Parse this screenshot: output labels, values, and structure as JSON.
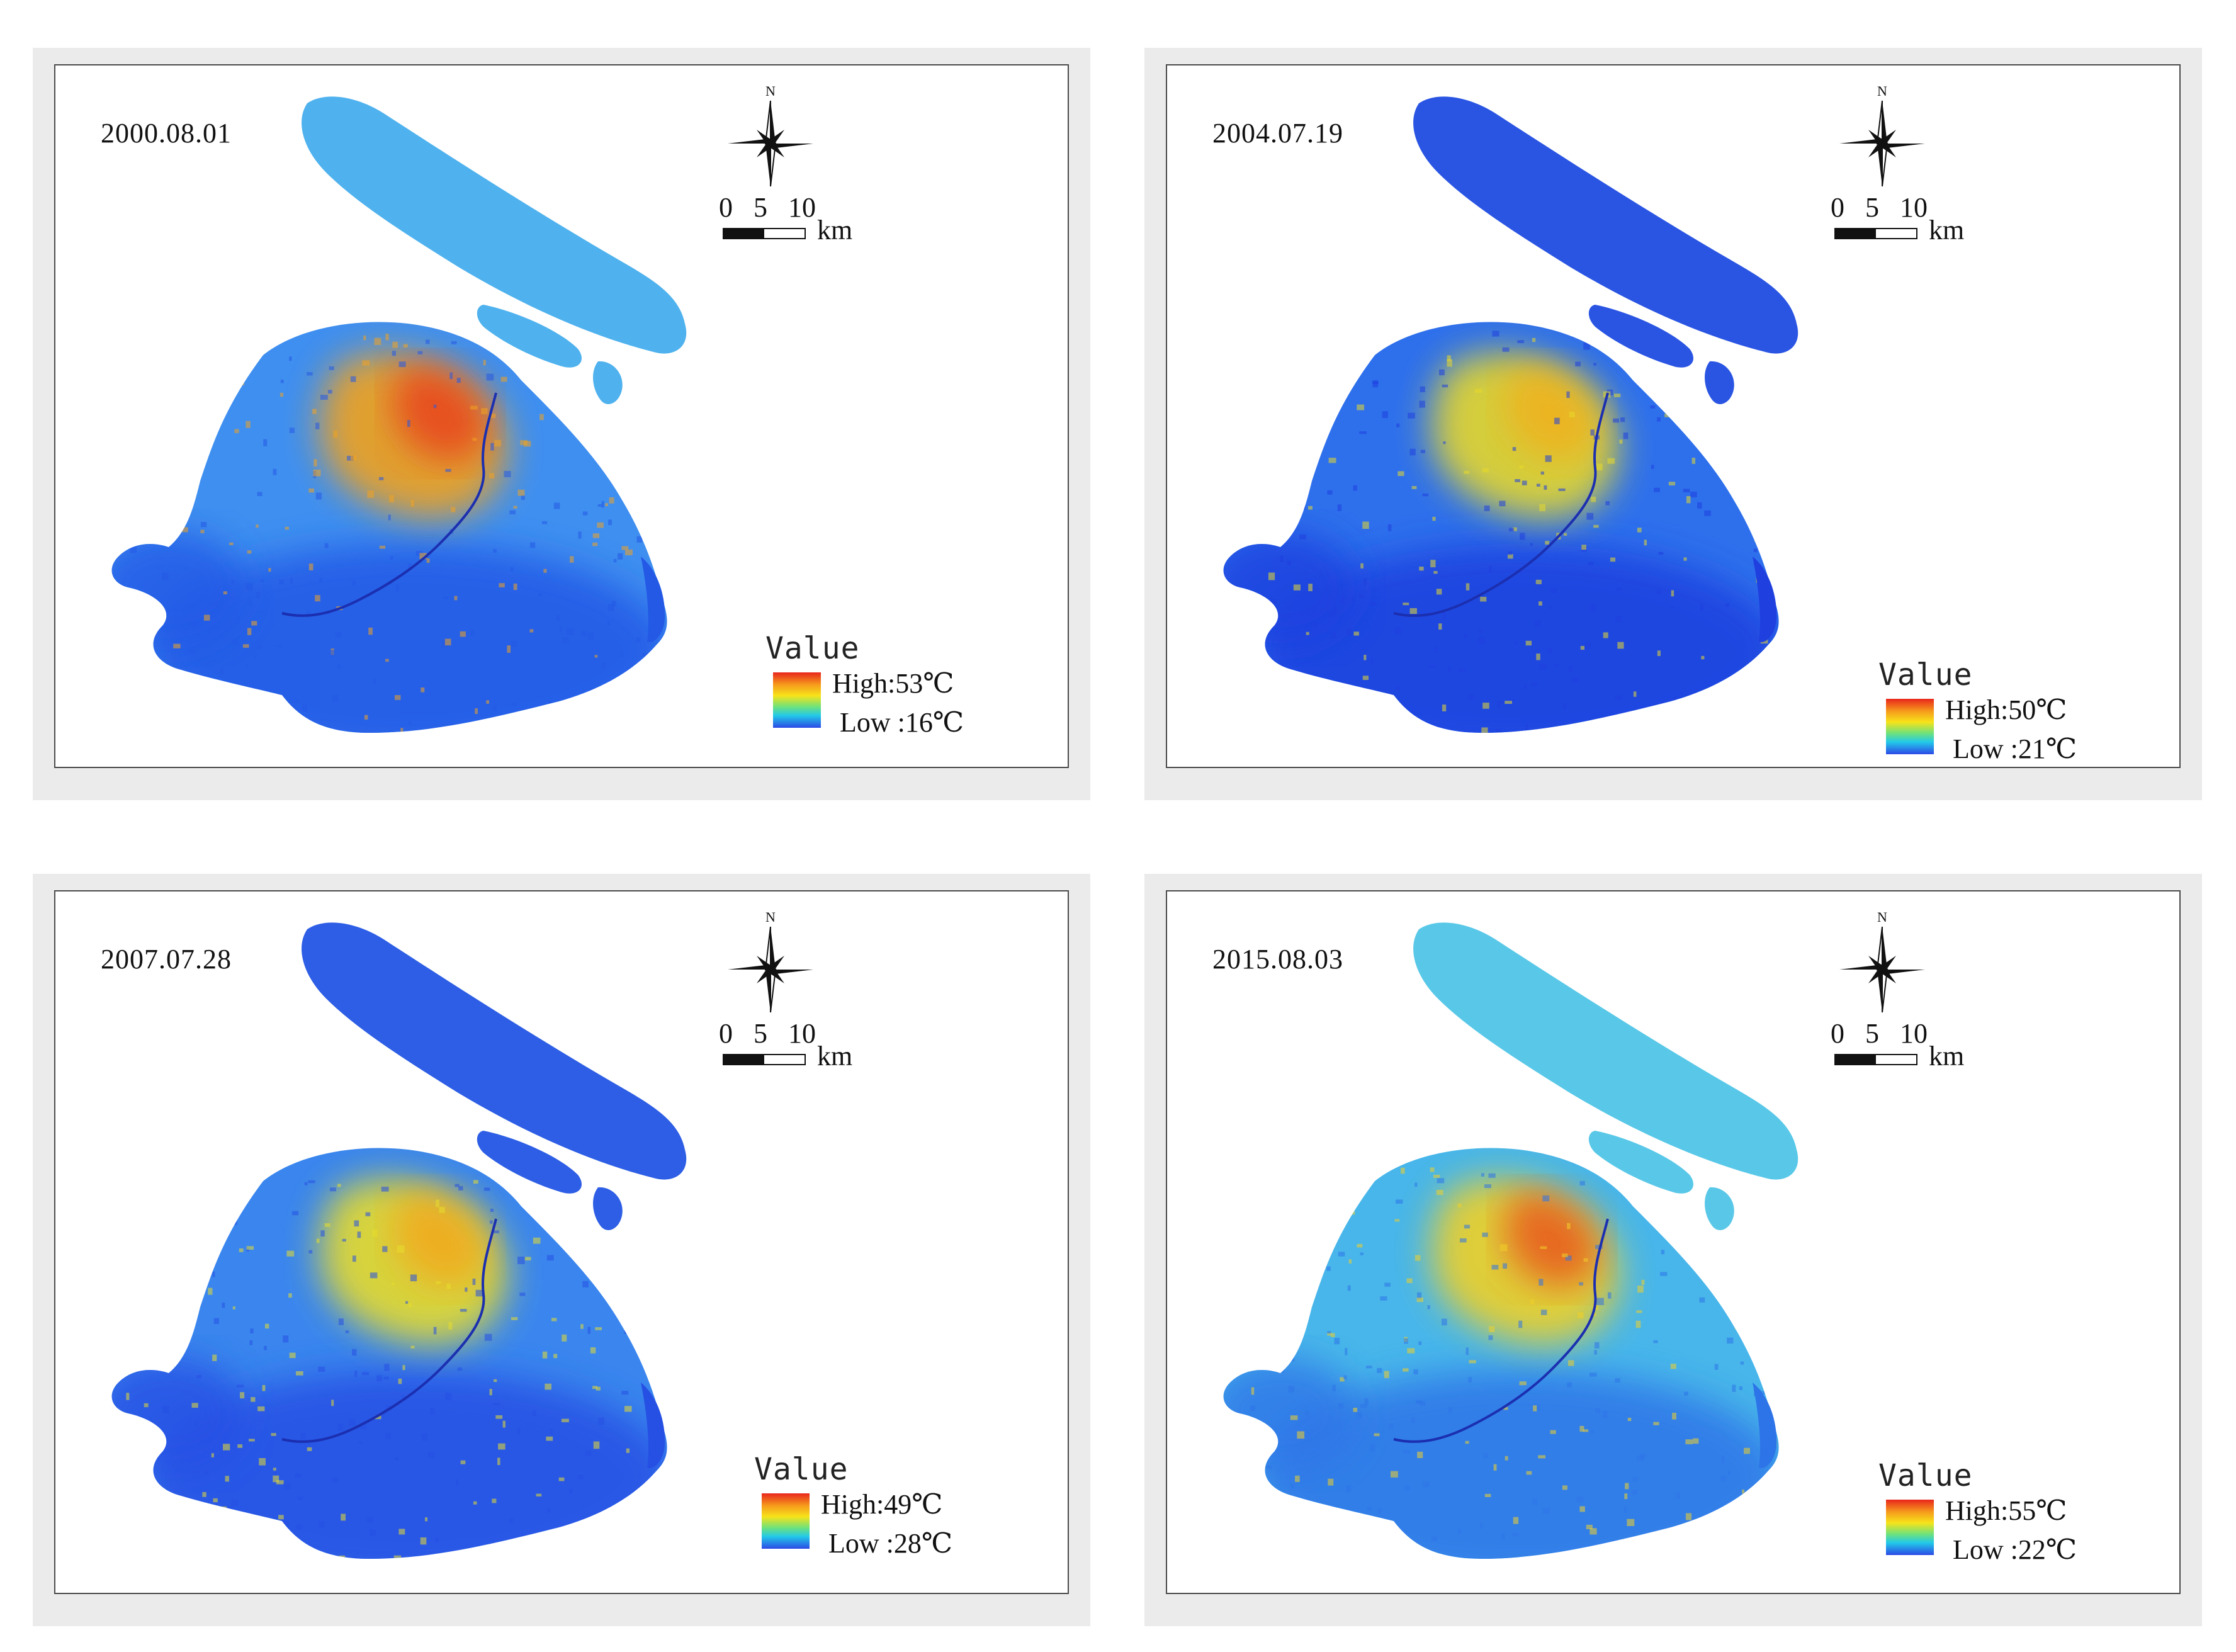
{
  "maps": [
    {
      "date": "2000.08.01",
      "legend": {
        "title": "Value",
        "high": "High:53℃",
        "low": "Low :16℃"
      },
      "scale": {
        "ticks": [
          "0",
          "5",
          "10"
        ],
        "unit": "km"
      },
      "north_label": "N",
      "palette": {
        "base": "#3f8ff0",
        "rural": "#2459e6",
        "urban": "#f2a21f",
        "core": "#e8421c",
        "island": "#4fb2ee"
      }
    },
    {
      "date": "2004.07.19",
      "legend": {
        "title": "Value",
        "high": "High:50℃",
        "low": "Low :21℃"
      },
      "scale": {
        "ticks": [
          "0",
          "5",
          "10"
        ],
        "unit": "km"
      },
      "north_label": "N",
      "palette": {
        "base": "#2e70ec",
        "rural": "#1f3fdf",
        "urban": "#e7d82a",
        "core": "#f0b01f",
        "island": "#2a55e3"
      }
    },
    {
      "date": "2007.07.28",
      "legend": {
        "title": "Value",
        "high": "High:49℃",
        "low": "Low :28℃"
      },
      "scale": {
        "ticks": [
          "0",
          "5",
          "10"
        ],
        "unit": "km"
      },
      "north_label": "N",
      "palette": {
        "base": "#3a86ee",
        "rural": "#2650e4",
        "urban": "#e8dc2b",
        "core": "#f2a81f",
        "island": "#2d5ee5"
      }
    },
    {
      "date": "2015.08.03",
      "legend": {
        "title": "Value",
        "high": "High:55℃",
        "low": "Low :22℃"
      },
      "scale": {
        "ticks": [
          "0",
          "5",
          "10"
        ],
        "unit": "km"
      },
      "north_label": "N",
      "palette": {
        "base": "#48b6ea",
        "rural": "#2d74e8",
        "urban": "#f0d028",
        "core": "#e8581c",
        "island": "#59c8e8"
      }
    }
  ]
}
